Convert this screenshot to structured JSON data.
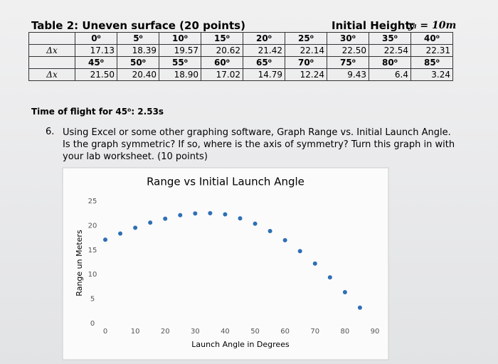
{
  "table": {
    "title": "Table 2: Uneven surface (20 points)",
    "height_label": "Initial Height:",
    "height_value": "yᵢ = 10m",
    "row_label": "Δx",
    "rows": [
      [
        "0⁰",
        "5⁰",
        "10⁰",
        "15⁰",
        "20⁰",
        "25⁰",
        "30⁰",
        "35⁰",
        "40⁰"
      ],
      [
        "17.13",
        "18.39",
        "19.57",
        "20.62",
        "21.42",
        "22.14",
        "22.50",
        "22.54",
        "22.31"
      ],
      [
        "45⁰",
        "50⁰",
        "55⁰",
        "60⁰",
        "65⁰",
        "70⁰",
        "75⁰",
        "80⁰",
        "85⁰"
      ],
      [
        "21.50",
        "20.40",
        "18.90",
        "17.02",
        "14.79",
        "12.24",
        "9.43",
        "6.4",
        "3.24"
      ]
    ]
  },
  "time_of_flight": "Time of flight for 45⁰: 2.53s",
  "question": {
    "number": "6.",
    "text": "Using Excel or some other graphing software, Graph Range vs. Initial Launch Angle. Is the graph symmetric? If so, where is the axis of symmetry? Turn this graph in with your lab worksheet. (10 points)"
  },
  "chart_data": {
    "type": "scatter",
    "title": "Range vs Initial Launch Angle",
    "x_label": "Launch Angle in Degrees",
    "y_label": "Range un Meters",
    "x": [
      0,
      5,
      10,
      15,
      20,
      25,
      30,
      35,
      40,
      45,
      50,
      55,
      60,
      65,
      70,
      75,
      80,
      85
    ],
    "values": [
      17.13,
      18.39,
      19.57,
      20.62,
      21.42,
      22.14,
      22.5,
      22.54,
      22.31,
      21.5,
      20.4,
      18.9,
      17.02,
      14.79,
      12.24,
      9.43,
      6.4,
      3.24
    ],
    "color": "#2e6fb5",
    "xlim": [
      0,
      90
    ],
    "ylim": [
      0,
      25
    ],
    "xticks": [
      0,
      10,
      20,
      30,
      40,
      50,
      60,
      70,
      80,
      90
    ],
    "yticks": [
      0,
      5,
      10,
      15,
      20,
      25
    ]
  }
}
